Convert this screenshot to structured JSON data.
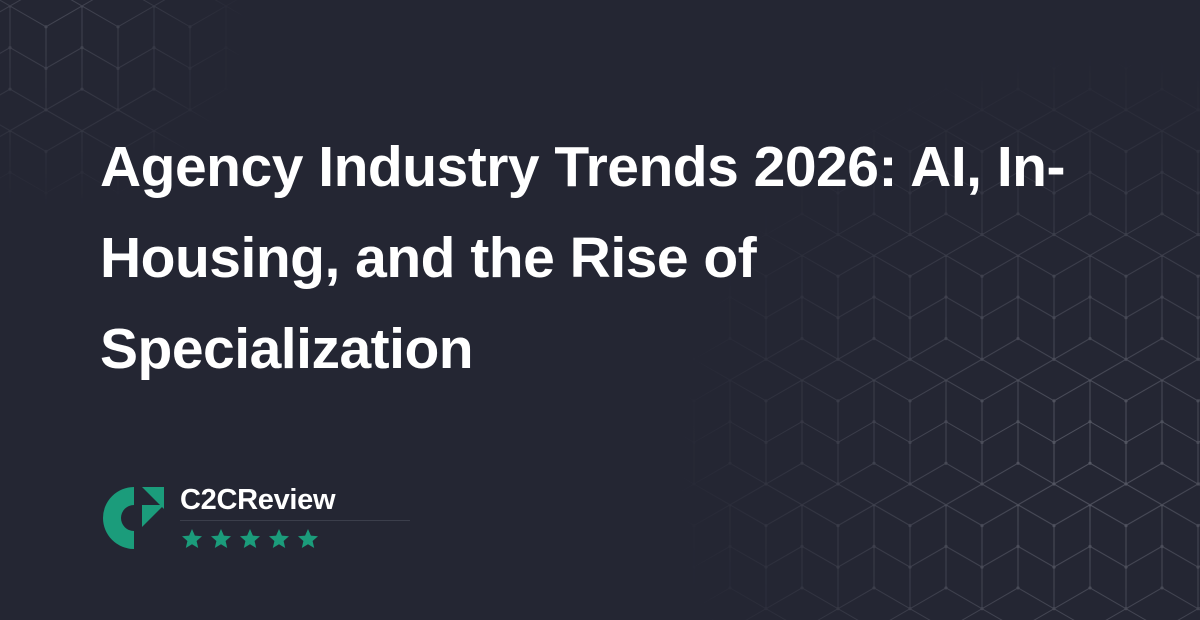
{
  "article": {
    "title": "Agency Industry Trends 2026: AI, In-Housing, and the Rise of Specialization"
  },
  "brand": {
    "name": "C2CReview",
    "logo_icon": "c2creview-logo-icon",
    "rating_stars": 5,
    "accent_color": "#1b9c7b"
  },
  "colors": {
    "background": "#242633",
    "text": "#ffffff",
    "pattern_lines": "#b9bcc8"
  }
}
